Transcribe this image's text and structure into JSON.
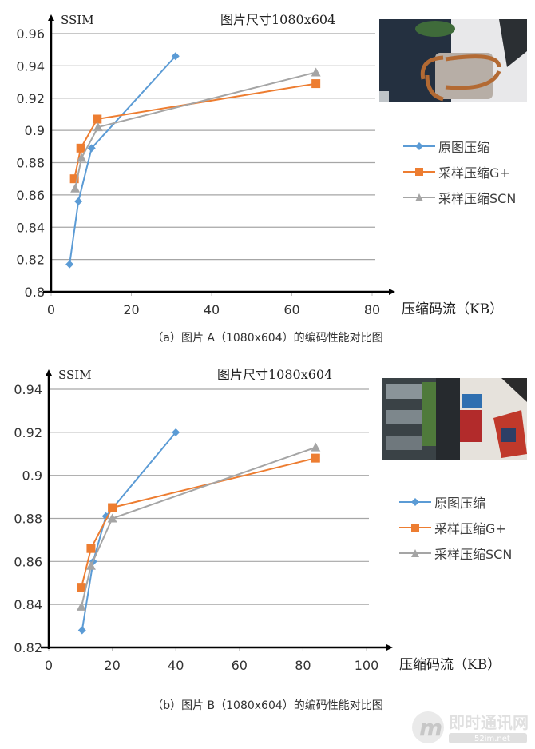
{
  "colors": {
    "original": "#5b9bd5",
    "g_plus": "#ed7d31",
    "scn": "#a5a5a5",
    "grid": "#a6a6a6",
    "axis": "#000000"
  },
  "legend": [
    {
      "label": "原图压缩",
      "marker": "diamond",
      "color": "#5b9bd5"
    },
    {
      "label": "采样压缩G+",
      "marker": "square",
      "color": "#ed7d31"
    },
    {
      "label": "采样压缩SCN",
      "marker": "triangle",
      "color": "#a5a5a5"
    }
  ],
  "panel_a": {
    "y_axis_name": "SSIM",
    "size_label": "图片尺寸1080x604",
    "x_axis_name": "压缩码流（KB）",
    "caption": "（a）图片 A（1080x604）的编码性能对比图",
    "photo_alt": "handbag-photo"
  },
  "panel_b": {
    "y_axis_name": "SSIM",
    "size_label": "图片尺寸1080x604",
    "x_axis_name": "压缩码流（KB）",
    "caption": "（b）图片 B（1080x604）的编码性能对比图",
    "photo_alt": "office-photo"
  },
  "watermark": {
    "text": "即时通讯网",
    "sub": "52im.net"
  },
  "chart_data": [
    {
      "type": "line",
      "title": "图片尺寸1080x604",
      "caption": "（a）图片 A（1080x604）的编码性能对比图",
      "xlabel": "压缩码流（KB）",
      "ylabel": "SSIM",
      "xlim": [
        0,
        80
      ],
      "ylim": [
        0.8,
        0.96
      ],
      "xticks": [
        0,
        20,
        40,
        60,
        80
      ],
      "yticks": [
        0.8,
        0.82,
        0.84,
        0.86,
        0.88,
        0.9,
        0.92,
        0.94,
        0.96
      ],
      "ytick_labels": [
        "0.8",
        "0.82",
        "0.84",
        "0.86",
        "0.88",
        "0.9",
        "0.92",
        "0.94",
        "0.96"
      ],
      "grid": "horizontal",
      "legend_position": "right",
      "series": [
        {
          "name": "原图压缩",
          "marker": "diamond",
          "color": "#5b9bd5",
          "x": [
            4.6,
            6.8,
            10.1,
            31.0
          ],
          "y": [
            0.817,
            0.856,
            0.889,
            0.946
          ]
        },
        {
          "name": "采样压缩G+",
          "marker": "square",
          "color": "#ed7d31",
          "x": [
            5.8,
            7.4,
            11.5,
            66.0
          ],
          "y": [
            0.87,
            0.889,
            0.907,
            0.929
          ]
        },
        {
          "name": "采样压缩SCN",
          "marker": "triangle",
          "color": "#a5a5a5",
          "x": [
            6.0,
            7.6,
            11.7,
            66.0
          ],
          "y": [
            0.864,
            0.883,
            0.902,
            0.936
          ]
        }
      ]
    },
    {
      "type": "line",
      "title": "图片尺寸1080x604",
      "caption": "（b）图片 B（1080x604）的编码性能对比图",
      "xlabel": "压缩码流（KB）",
      "ylabel": "SSIM",
      "xlim": [
        0,
        100
      ],
      "ylim": [
        0.82,
        0.94
      ],
      "xticks": [
        0,
        20,
        40,
        60,
        80,
        100
      ],
      "yticks": [
        0.82,
        0.84,
        0.86,
        0.88,
        0.9,
        0.92,
        0.94
      ],
      "ytick_labels": [
        "0.82",
        "0.84",
        "0.86",
        "0.88",
        "0.9",
        "0.92",
        "0.94"
      ],
      "grid": "horizontal",
      "legend_position": "right",
      "series": [
        {
          "name": "原图压缩",
          "marker": "diamond",
          "color": "#5b9bd5",
          "x": [
            10.5,
            14.0,
            18.0,
            40.0
          ],
          "y": [
            0.828,
            0.86,
            0.881,
            0.92
          ]
        },
        {
          "name": "采样压缩G+",
          "marker": "square",
          "color": "#ed7d31",
          "x": [
            10.3,
            13.3,
            20.0,
            84.0
          ],
          "y": [
            0.848,
            0.866,
            0.885,
            0.908
          ]
        },
        {
          "name": "采样压缩SCN",
          "marker": "triangle",
          "color": "#a5a5a5",
          "x": [
            10.3,
            13.3,
            20.0,
            84.0
          ],
          "y": [
            0.839,
            0.858,
            0.88,
            0.913
          ]
        }
      ]
    }
  ]
}
